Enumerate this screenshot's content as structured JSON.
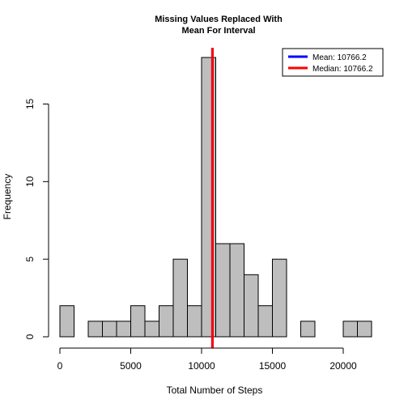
{
  "chart_data": {
    "type": "bar",
    "title_lines": [
      "Missing Values Replaced With",
      "Mean For Interval"
    ],
    "xlabel": "Total Number of Steps",
    "ylabel": "Frequency",
    "xlim": [
      0,
      22000
    ],
    "ylim": [
      0,
      18
    ],
    "x_ticks": [
      0,
      5000,
      10000,
      15000,
      20000
    ],
    "x_tick_labels": [
      "0",
      "5000",
      "10000",
      "15000",
      "20000"
    ],
    "y_ticks": [
      0,
      5,
      10,
      15
    ],
    "y_tick_labels": [
      "0",
      "5",
      "10",
      "15"
    ],
    "bin_width": 1000,
    "bin_starts": [
      0,
      1000,
      2000,
      3000,
      4000,
      5000,
      6000,
      7000,
      8000,
      9000,
      10000,
      11000,
      12000,
      13000,
      14000,
      15000,
      16000,
      17000,
      18000,
      19000,
      20000,
      21000
    ],
    "values": [
      2,
      0,
      1,
      1,
      1,
      2,
      1,
      2,
      5,
      2,
      18,
      6,
      6,
      4,
      2,
      5,
      0,
      1,
      0,
      0,
      1,
      1
    ],
    "bar_fill": "#bebebe",
    "bar_stroke": "#000000",
    "reference_lines": [
      {
        "name": "Mean",
        "value": 10766.2,
        "color": "#0000ff",
        "label": "Mean:  10766.2"
      },
      {
        "name": "Median",
        "value": 10766.2,
        "color": "#ff0000",
        "label": "Median:  10766.2"
      }
    ],
    "legend_placement": "top-right",
    "grid": false
  }
}
